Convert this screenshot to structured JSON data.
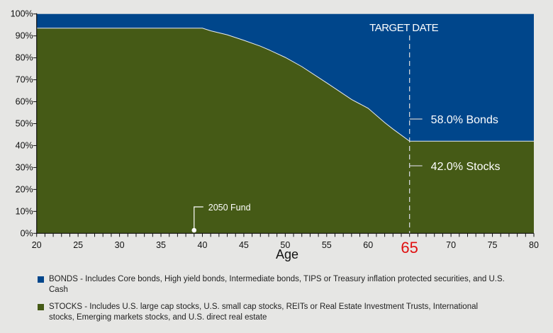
{
  "chart_data": {
    "type": "area",
    "xlabel": "Age",
    "ylabel": "",
    "xlim": [
      20,
      80
    ],
    "ylim": [
      0,
      100
    ],
    "x_ticks": [
      20,
      25,
      30,
      35,
      40,
      45,
      50,
      55,
      60,
      65,
      70,
      75,
      80
    ],
    "y_ticks": [
      "0%",
      "10%",
      "20%",
      "30%",
      "40%",
      "50%",
      "60%",
      "70%",
      "80%",
      "90%",
      "100%"
    ],
    "highlight_tick": "65",
    "grid": false,
    "stacked": true,
    "series": [
      {
        "name": "STOCKS",
        "color": "#455a16",
        "points": [
          [
            20,
            93.5
          ],
          [
            40,
            93.5
          ],
          [
            41,
            92.3
          ],
          [
            43,
            90.5
          ],
          [
            45,
            88
          ],
          [
            47,
            85.3
          ],
          [
            48,
            83.7
          ],
          [
            50,
            80.2
          ],
          [
            52,
            76
          ],
          [
            55,
            68.6
          ],
          [
            58,
            61
          ],
          [
            60,
            57
          ],
          [
            62,
            50.5
          ],
          [
            63,
            47.5
          ],
          [
            65,
            42
          ],
          [
            80,
            42
          ]
        ]
      },
      {
        "name": "BONDS",
        "color": "#00468b",
        "fill_to": 100
      }
    ],
    "annotations": {
      "target_date": {
        "label": "TARGET DATE",
        "x": 65
      },
      "bonds_label": "58.0% Bonds",
      "stocks_label": "42.0% Stocks",
      "fund": {
        "label": "2050 Fund",
        "x": 39
      }
    },
    "legend": {
      "placement": "bottom",
      "items": [
        {
          "color": "#00468b",
          "text": "BONDS - Includes Core bonds, High yield bonds, Intermediate bonds, TIPS or Treasury inflation protected securities, and U.S. Cash"
        },
        {
          "color": "#455a16",
          "text": "STOCKS - Includes U.S. large cap stocks, U.S. small cap stocks, REITs or Real Estate Investment Trusts, International stocks, Emerging markets stocks, and U.S. direct real estate"
        }
      ]
    }
  }
}
